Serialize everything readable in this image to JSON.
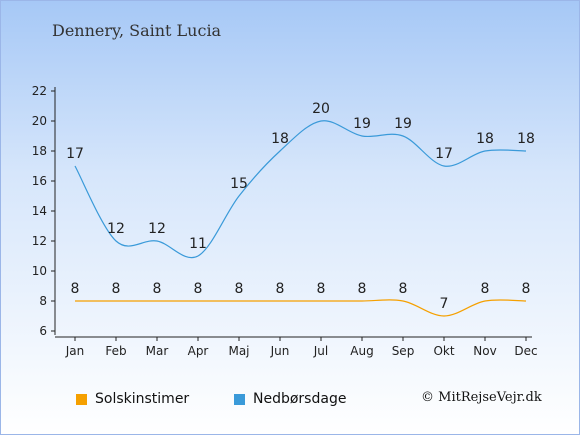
{
  "page": {
    "title": "Dennery, Saint Lucia",
    "copyright": "© MitRejseVejr.dk"
  },
  "chart_data": {
    "type": "line",
    "title": "Dennery, Saint Lucia",
    "categories": [
      "Jan",
      "Feb",
      "Mar",
      "Apr",
      "Maj",
      "Jun",
      "Jul",
      "Aug",
      "Sep",
      "Okt",
      "Nov",
      "Dec"
    ],
    "series": [
      {
        "name": "Solskinstimer",
        "color": "#f5a000",
        "values": [
          8,
          8,
          8,
          8,
          8,
          8,
          8,
          8,
          8,
          7,
          8,
          8
        ]
      },
      {
        "name": "Nedbørsdage",
        "color": "#3a9ad9",
        "values": [
          17,
          12,
          12,
          11,
          15,
          18,
          20,
          19,
          19,
          17,
          18,
          18
        ]
      }
    ],
    "yticks": [
      6,
      8,
      10,
      12,
      14,
      16,
      18,
      20,
      22
    ],
    "ylim": [
      6,
      22
    ],
    "xlabel": "",
    "ylabel": "",
    "legend_position": "bottom",
    "grid": false
  }
}
